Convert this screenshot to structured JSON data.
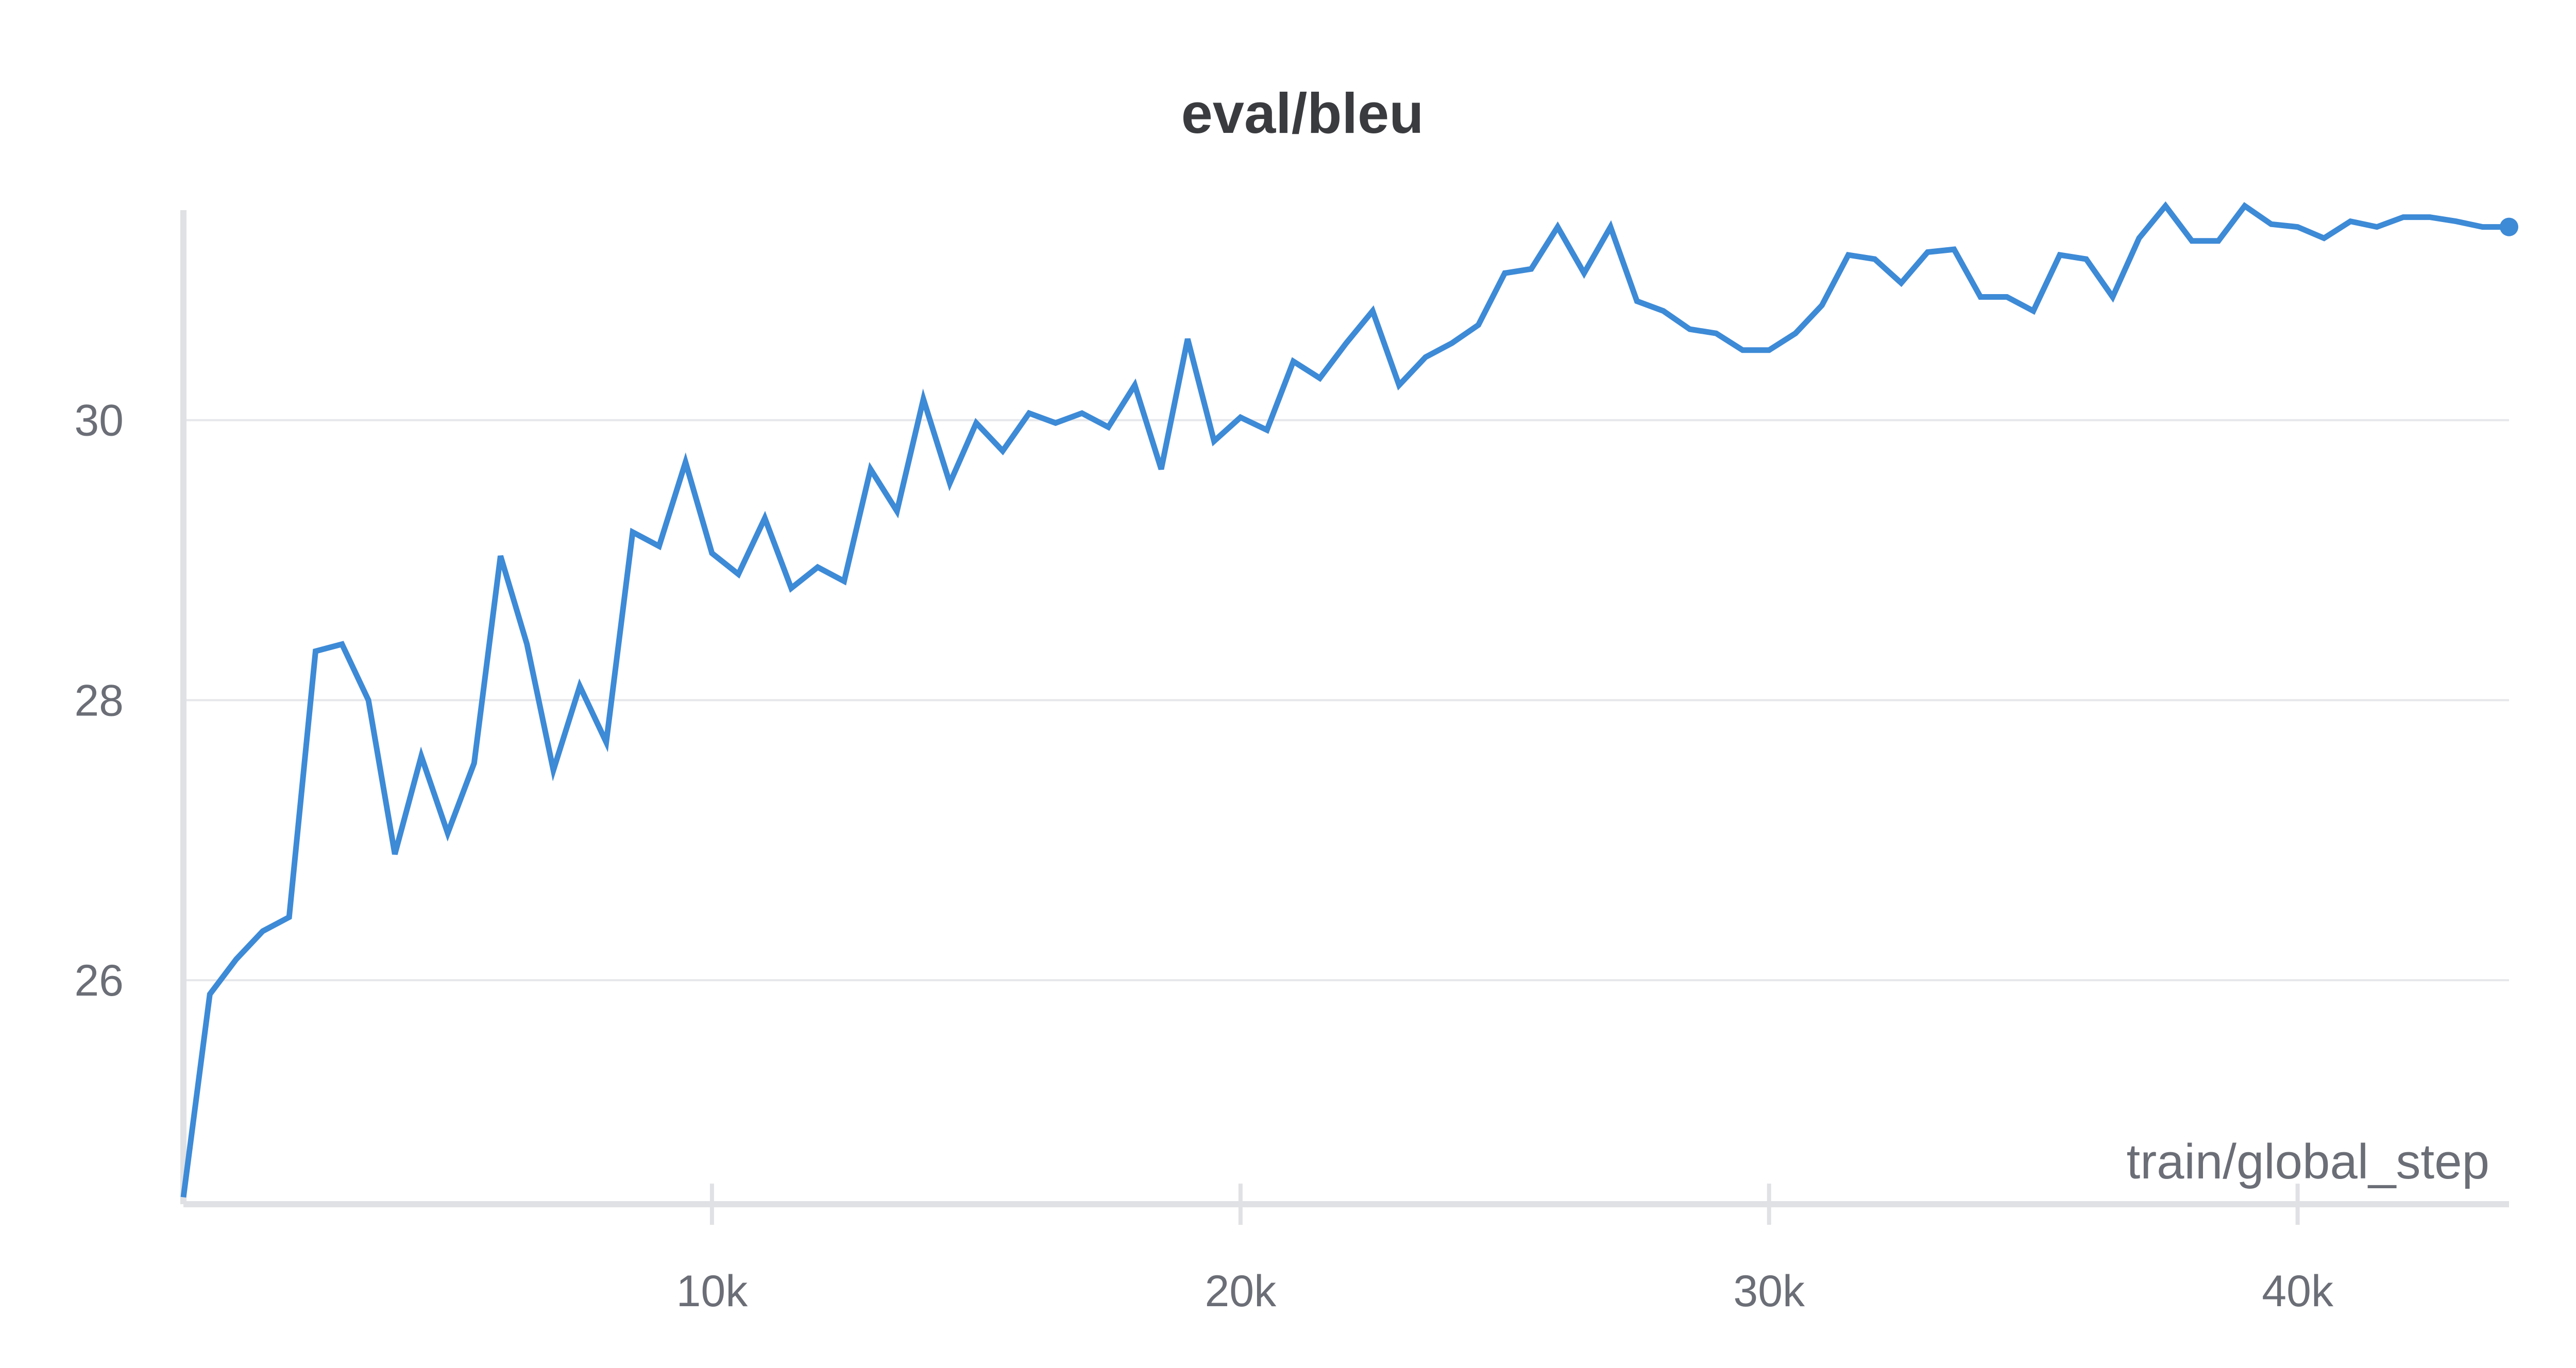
{
  "chart_data": {
    "type": "line",
    "title": "eval/bleu",
    "xlabel": "train/global_step",
    "ylabel": "",
    "xlim": [
      0,
      44000
    ],
    "ylim": [
      24.4,
      31.5
    ],
    "x_ticks": [
      10000,
      20000,
      30000,
      40000
    ],
    "x_tick_labels": [
      "10k",
      "20k",
      "30k",
      "40k"
    ],
    "y_ticks": [
      26,
      28,
      30
    ],
    "y_tick_labels": [
      "26",
      "28",
      "30"
    ],
    "grid": true,
    "colors": {
      "line": "#3d8ad7",
      "grid": "#e6e7ea",
      "axis": "#e0e1e4"
    },
    "series": [
      {
        "x": [
          0,
          500,
          1000,
          1500,
          2000,
          2500,
          3000,
          3500,
          4000,
          4500,
          5000,
          5500,
          6000,
          6500,
          7000,
          7500,
          8000,
          8500,
          9000,
          9500,
          10000,
          10500,
          11000,
          11500,
          12000,
          12500,
          13000,
          13500,
          14000,
          14500,
          15000,
          15500,
          16000,
          16500,
          17000,
          17500,
          18000,
          18500,
          19000,
          19500,
          20000,
          20500,
          21000,
          21500,
          22000,
          22500,
          23000,
          23500,
          24000,
          24500,
          25000,
          25500,
          26000,
          26500,
          27000,
          27500,
          28000,
          28500,
          29000,
          29500,
          30000,
          30500,
          31000,
          31500,
          32000,
          32500,
          33000,
          33500,
          34000,
          34500,
          35000,
          35500,
          36000,
          36500,
          37000,
          37500,
          38000,
          38500,
          39000,
          39500,
          40000,
          40500,
          41000,
          41500,
          42000,
          42500,
          43000,
          43500,
          44000
        ],
        "values": [
          24.45,
          25.9,
          26.15,
          26.35,
          26.45,
          28.35,
          28.4,
          28.0,
          26.9,
          27.6,
          27.05,
          27.55,
          29.03,
          28.4,
          27.5,
          28.1,
          27.7,
          29.2,
          29.1,
          29.7,
          29.05,
          28.9,
          29.3,
          28.8,
          28.95,
          28.85,
          29.65,
          29.35,
          30.15,
          29.55,
          29.98,
          29.78,
          30.05,
          29.98,
          30.05,
          29.95,
          30.25,
          29.65,
          30.58,
          29.85,
          30.02,
          29.93,
          30.42,
          30.3,
          30.55,
          30.78,
          30.25,
          30.45,
          30.55,
          30.68,
          31.05,
          31.08,
          31.38,
          31.05,
          31.38,
          30.85,
          30.78,
          30.65,
          30.62,
          30.5,
          30.5,
          30.62,
          30.82,
          31.18,
          31.15,
          30.98,
          31.2,
          31.22,
          30.88,
          30.88,
          30.78,
          31.18,
          31.15,
          30.88,
          31.3,
          31.53,
          31.28,
          31.28,
          31.53,
          31.4,
          31.38,
          31.3,
          31.42,
          31.38,
          31.45,
          31.45,
          31.42,
          31.38,
          31.38
        ]
      }
    ]
  }
}
